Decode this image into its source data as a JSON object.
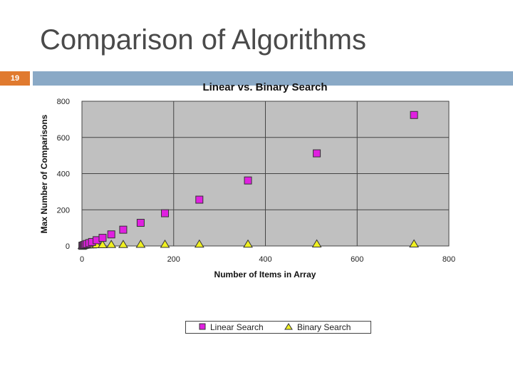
{
  "slide": {
    "title": "Comparison of Algorithms",
    "page_number": "19"
  },
  "colors": {
    "accent_orange": "#e07a2f",
    "header_bar": "#8aa9c6",
    "plot_background": "#c0c0c0",
    "linear_marker": "#e020e0",
    "binary_marker": "#f0f020"
  },
  "chart_data": {
    "type": "scatter",
    "title": "Linear vs. Binary Search",
    "xlabel": "Number of Items in Array",
    "ylabel": "Max Number of Comparisons",
    "xlim": [
      0,
      800
    ],
    "ylim": [
      0,
      800
    ],
    "xticks": [
      0,
      200,
      400,
      600,
      800
    ],
    "yticks": [
      0,
      200,
      400,
      600,
      800
    ],
    "grid": true,
    "legend_position": "bottom",
    "series": [
      {
        "name": "Linear Search",
        "marker": "square",
        "points": [
          [
            1,
            1
          ],
          [
            2,
            2
          ],
          [
            4,
            4
          ],
          [
            6,
            6
          ],
          [
            8,
            8
          ],
          [
            11,
            11
          ],
          [
            16,
            16
          ],
          [
            22,
            22
          ],
          [
            32,
            32
          ],
          [
            45,
            45
          ],
          [
            64,
            64
          ],
          [
            90,
            90
          ],
          [
            128,
            128
          ],
          [
            181,
            181
          ],
          [
            256,
            256
          ],
          [
            362,
            362
          ],
          [
            512,
            512
          ],
          [
            724,
            724
          ]
        ]
      },
      {
        "name": "Binary Search",
        "marker": "triangle",
        "points": [
          [
            1,
            1
          ],
          [
            2,
            2
          ],
          [
            4,
            3
          ],
          [
            6,
            3
          ],
          [
            8,
            4
          ],
          [
            11,
            4
          ],
          [
            16,
            5
          ],
          [
            22,
            5
          ],
          [
            32,
            6
          ],
          [
            45,
            6
          ],
          [
            64,
            7
          ],
          [
            90,
            7
          ],
          [
            128,
            8
          ],
          [
            181,
            8
          ],
          [
            256,
            9
          ],
          [
            362,
            9
          ],
          [
            512,
            10
          ],
          [
            724,
            10
          ]
        ]
      }
    ]
  }
}
